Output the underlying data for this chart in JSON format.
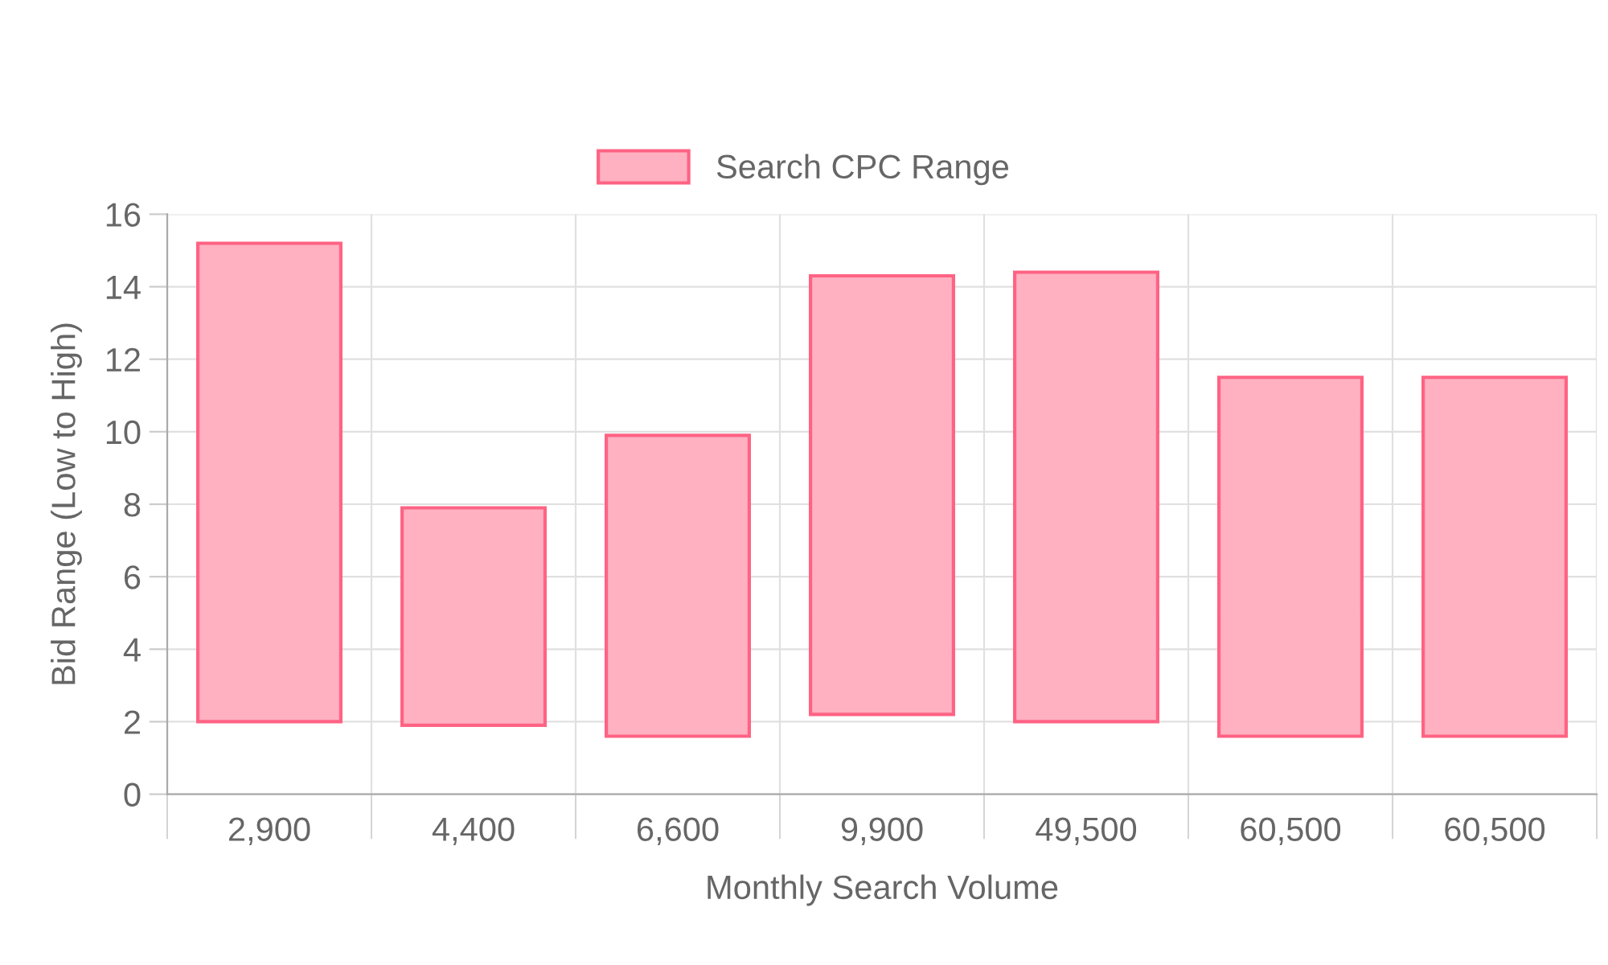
{
  "chart_data": {
    "type": "bar",
    "xlabel": "Monthly Search Volume",
    "ylabel": "Bid Range (Low to High)",
    "categories": [
      "2,900",
      "4,400",
      "6,600",
      "9,900",
      "49,500",
      "60,500",
      "60,500"
    ],
    "series": [
      {
        "name": "Search CPC Range",
        "color": "#ffb1c1",
        "values": [
          13.2,
          6.0,
          8.3,
          12.1,
          12.4,
          9.9,
          9.9
        ],
        "base": [
          2.0,
          1.9,
          1.6,
          2.2,
          2.0,
          1.6,
          1.6
        ]
      }
    ],
    "ylim": [
      0,
      16
    ],
    "yticks": [
      0,
      2,
      4,
      6,
      8,
      10,
      12,
      14,
      16
    ],
    "grid": true,
    "legend": "top"
  }
}
